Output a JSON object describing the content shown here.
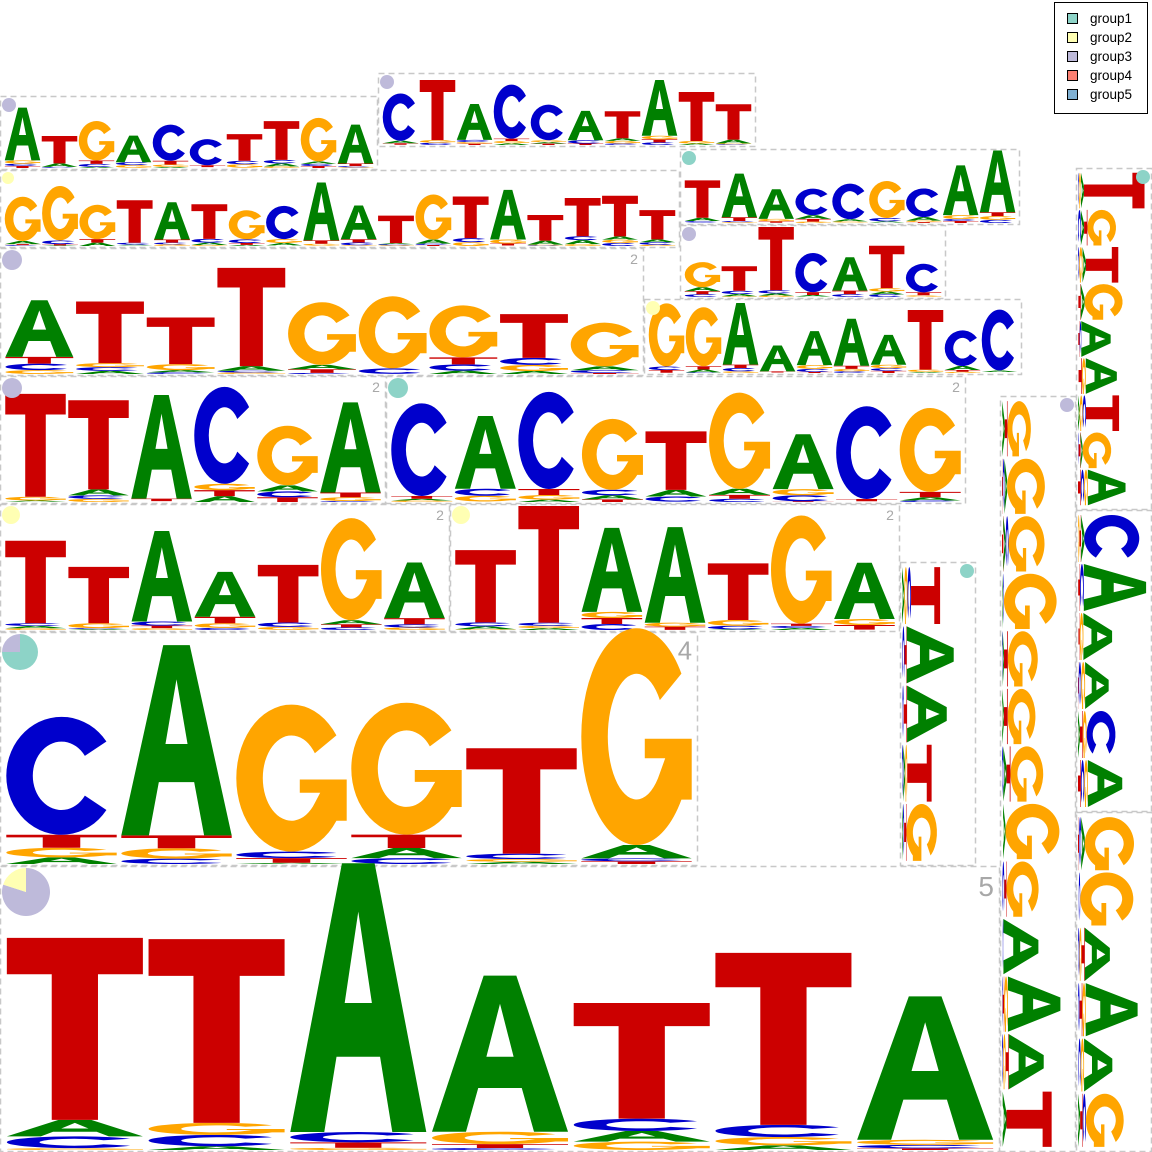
{
  "colors": {
    "A": "#008000",
    "C": "#0000cc",
    "G": "#ffa500",
    "T": "#cc0000"
  },
  "legend": {
    "items": [
      {
        "label": "group1",
        "color": "#8dd3c7"
      },
      {
        "label": "group2",
        "color": "#ffffb3"
      },
      {
        "label": "group3",
        "color": "#bebada"
      },
      {
        "label": "group4",
        "color": "#fb8072"
      },
      {
        "label": "group5",
        "color": "#80b1d3"
      }
    ]
  },
  "chart_data": {
    "type": "motif-cloud",
    "title": "",
    "legend_position": "top-right",
    "motifs": [
      {
        "id": "m1",
        "count": "",
        "group_mix": [
          [
            "group3",
            1
          ]
        ],
        "consensus": "ATGACCTTGA"
      },
      {
        "id": "m2",
        "count": "",
        "group_mix": [
          [
            "group3",
            1
          ]
        ],
        "consensus": "CTACCATATT"
      },
      {
        "id": "m3",
        "count": "",
        "group_mix": [
          [
            "group2",
            1
          ]
        ],
        "consensus": "GGGTATGCAATGTATTTT"
      },
      {
        "id": "m4",
        "count": "",
        "group_mix": [
          [
            "group1",
            1
          ]
        ],
        "consensus": "TAACCGCAA"
      },
      {
        "id": "m5",
        "count": "2",
        "group_mix": [
          [
            "group3",
            1
          ]
        ],
        "consensus": "ATTTGGGTG"
      },
      {
        "id": "m6",
        "count": "",
        "group_mix": [
          [
            "group3",
            1
          ]
        ],
        "consensus": "GTTCATC"
      },
      {
        "id": "m7",
        "count": "",
        "group_mix": [
          [
            "group2",
            1
          ]
        ],
        "consensus": "GGAAAAATCC"
      },
      {
        "id": "m8",
        "count": "2",
        "group_mix": [
          [
            "group3",
            1
          ]
        ],
        "consensus": "TTACGA"
      },
      {
        "id": "m9",
        "count": "2",
        "group_mix": [
          [
            "group1",
            1
          ]
        ],
        "consensus": "CACGTGACG"
      },
      {
        "id": "m10",
        "count": "2",
        "group_mix": [
          [
            "group2",
            1
          ]
        ],
        "consensus": "TTAATGA"
      },
      {
        "id": "m11",
        "count": "2",
        "group_mix": [
          [
            "group2",
            1
          ]
        ],
        "consensus": "TTAATGA"
      },
      {
        "id": "m12",
        "count": "4",
        "group_mix": [
          [
            "group1",
            0.75
          ],
          [
            "group3",
            0.25
          ]
        ],
        "consensus": "CAGGTG"
      },
      {
        "id": "m13",
        "count": "",
        "group_mix": [
          [
            "group1",
            1
          ]
        ],
        "consensus": "TAATG"
      },
      {
        "id": "m14",
        "count": "",
        "group_mix": [
          [
            "group3",
            1
          ]
        ],
        "consensus": "GGGGGGGGGAAAT"
      },
      {
        "id": "m15",
        "count": "",
        "group_mix": [
          [
            "group1",
            1
          ]
        ],
        "consensus": "TGTGAATGA"
      },
      {
        "id": "m16",
        "count": "",
        "group_mix": [
          [
            "group1",
            1
          ]
        ],
        "consensus": "CAAACA"
      },
      {
        "id": "m17",
        "count": "",
        "group_mix": [
          [
            "group1",
            1
          ]
        ],
        "consensus": "GGAAAG"
      },
      {
        "id": "m18",
        "count": "5",
        "group_mix": [
          [
            "group3",
            0.8
          ],
          [
            "group2",
            0.2
          ]
        ],
        "consensus": "TTAATTA"
      }
    ]
  }
}
